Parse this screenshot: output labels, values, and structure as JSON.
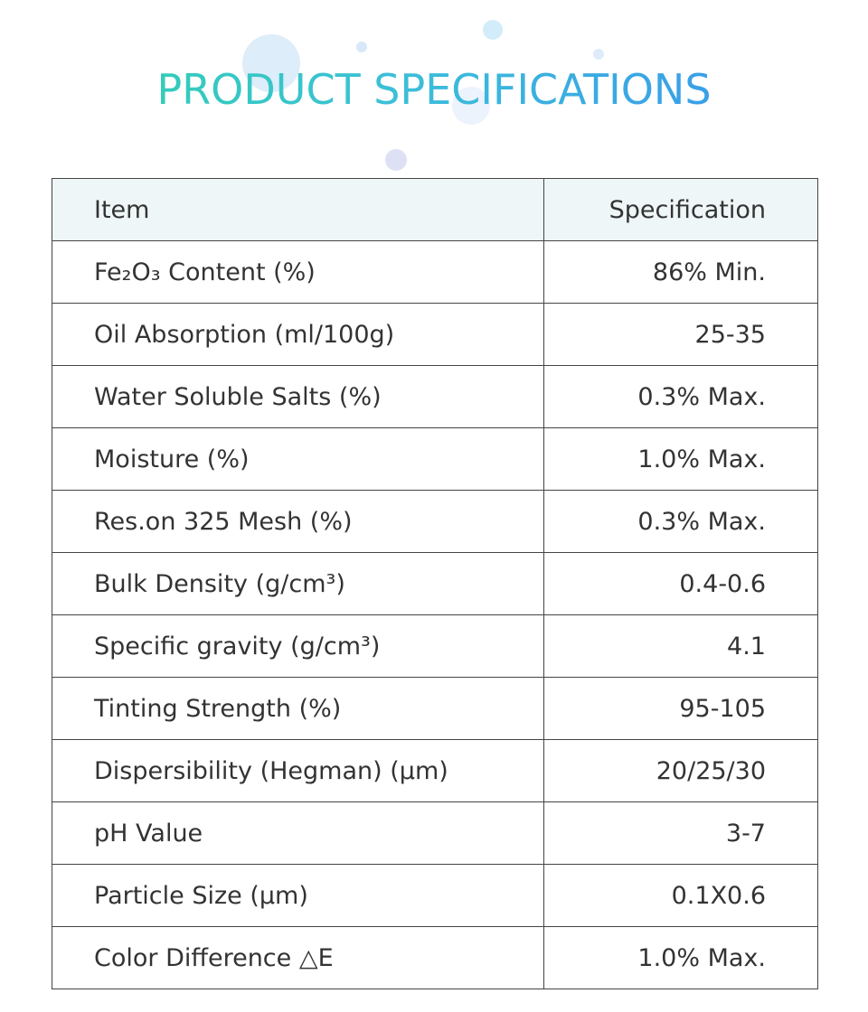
{
  "header": {
    "title": "PRODUCT SPECIFICATIONS"
  },
  "table": {
    "columns": [
      "Item",
      "Specification"
    ],
    "rows": [
      [
        "Fe₂O₃ Content (%)",
        "86% Min."
      ],
      [
        "Oil Absorption (ml/100g)",
        "25-35"
      ],
      [
        "Water Soluble Salts (%)",
        "0.3% Max."
      ],
      [
        "Moisture (%)",
        "1.0% Max."
      ],
      [
        "Res.on 325 Mesh (%)",
        "0.3% Max."
      ],
      [
        "Bulk Density (g/cm³)",
        "0.4-0.6"
      ],
      [
        "Specific gravity (g/cm³)",
        "4.1"
      ],
      [
        "Tinting Strength (%)",
        "95-105"
      ],
      [
        "Dispersibility (Hegman) (μm)",
        "20/25/30"
      ],
      [
        "pH Value",
        "3-7"
      ],
      [
        "Particle Size (μm)",
        "0.1X0.6"
      ],
      [
        "Color Difference △E",
        "1.0% Max."
      ]
    ]
  }
}
